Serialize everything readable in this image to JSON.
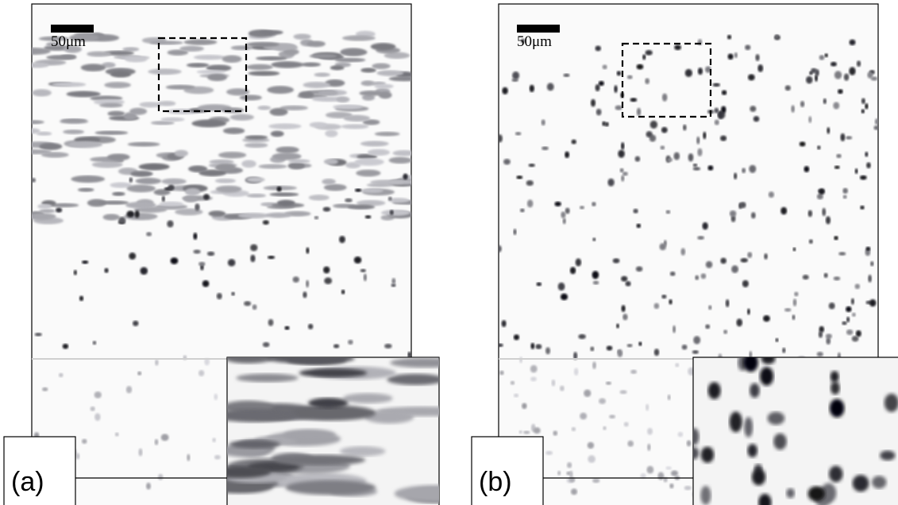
{
  "panels": [
    {
      "label": "(a)",
      "scale_bar": "50μm"
    },
    {
      "label": "(b)",
      "scale_bar": "50μm"
    }
  ]
}
